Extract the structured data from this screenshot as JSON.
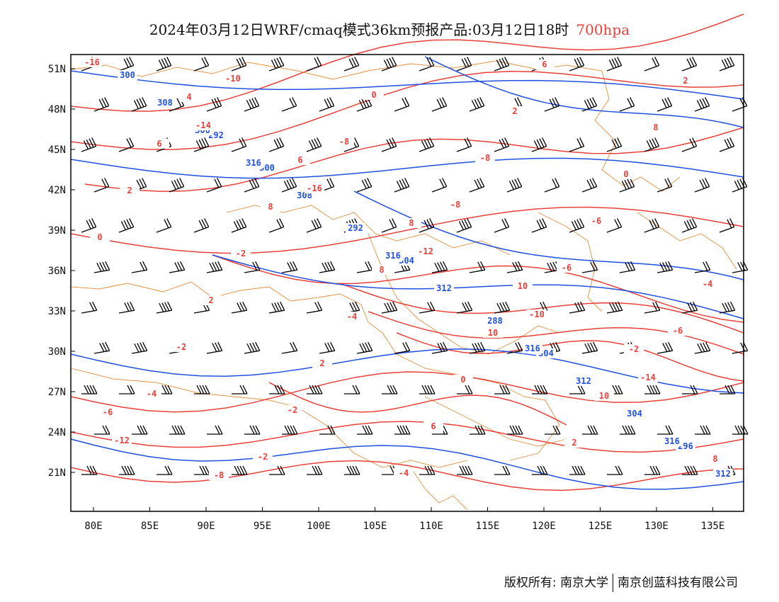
{
  "title": {
    "main": "2024年03月12日WRF/cmaq模式36km预报产品:03月12日18时",
    "level": "700hpa",
    "level_color": "#e8413a"
  },
  "map": {
    "lon_range": [
      78,
      138
    ],
    "lat_range": [
      18,
      52
    ],
    "x_ticks": [
      "80E",
      "85E",
      "90E",
      "95E",
      "100E",
      "105E",
      "110E",
      "115E",
      "120E",
      "125E",
      "130E",
      "135E"
    ],
    "y_ticks": [
      "51N",
      "48N",
      "45N",
      "42N",
      "39N",
      "36N",
      "33N",
      "30N",
      "27N",
      "24N",
      "21N"
    ],
    "colors": {
      "height_contours": "#2050e0",
      "temperature_contours": "#e8413a",
      "boundaries": "#e09040",
      "wind_barbs": "#000000"
    },
    "height_labels": [
      "300",
      "300",
      "304",
      "304",
      "296",
      "292",
      "292",
      "288",
      "304",
      "308",
      "308",
      "312",
      "312",
      "312",
      "316",
      "316",
      "316",
      "316",
      "300"
    ],
    "temperature_labels": [
      "-16",
      "-14",
      "-16",
      "-12",
      "-10",
      "-14",
      "-12",
      "-10",
      "-8",
      "-8",
      "-6",
      "-6",
      "-4",
      "-2",
      "0",
      "-8",
      "-6",
      "-4",
      "-2",
      "-2",
      "-4",
      "2",
      "0",
      "0",
      "2",
      "2",
      "6",
      "6",
      "8",
      "2",
      "-2",
      "-4",
      "0",
      "2",
      "2",
      "6",
      "8",
      "8",
      "10",
      "10",
      "8",
      "4",
      "6",
      "8",
      "10",
      "-2",
      "-6",
      "-8"
    ]
  },
  "footer": {
    "left": "版权所有: 南京大学",
    "right": "南京创蓝科技有限公司"
  }
}
